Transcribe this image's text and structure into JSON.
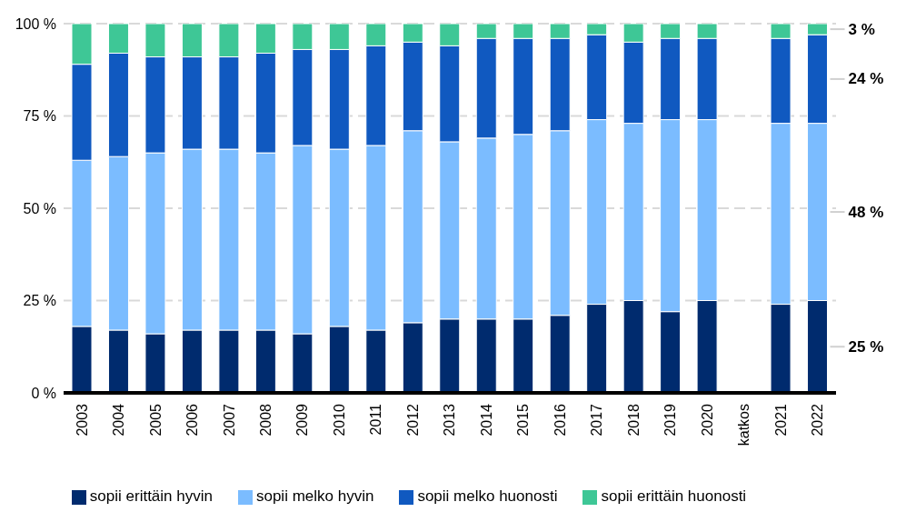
{
  "chart_data": {
    "type": "bar",
    "stacked": true,
    "categories": [
      "2003",
      "2004",
      "2005",
      "2006",
      "2007",
      "2008",
      "2009",
      "2010",
      "2011",
      "2012",
      "2013",
      "2014",
      "2015",
      "2016",
      "2017",
      "2018",
      "2019",
      "2020",
      "katkos",
      "2021",
      "2022"
    ],
    "series": [
      {
        "name": "sopii erittäin hyvin",
        "color": "#002b6e",
        "values": [
          18,
          17,
          16,
          17,
          17,
          17,
          16,
          18,
          17,
          19,
          20,
          20,
          20,
          21,
          24,
          25,
          22,
          25,
          null,
          24,
          25
        ],
        "value_labels": [
          null,
          null,
          null,
          null,
          null,
          null,
          null,
          null,
          null,
          null,
          null,
          null,
          null,
          null,
          null,
          null,
          null,
          null,
          null,
          null,
          "25 %"
        ]
      },
      {
        "name": "sopii melko hyvin",
        "color": "#7bbcff",
        "values": [
          45,
          47,
          49,
          49,
          49,
          48,
          51,
          48,
          50,
          52,
          48,
          49,
          50,
          50,
          50,
          48,
          52,
          49,
          null,
          49,
          48
        ],
        "value_labels": [
          null,
          null,
          null,
          null,
          null,
          null,
          null,
          null,
          null,
          null,
          null,
          null,
          null,
          null,
          null,
          null,
          null,
          null,
          null,
          null,
          "48 %"
        ]
      },
      {
        "name": "sopii melko huonosti",
        "color": "#1059c0",
        "values": [
          26,
          28,
          26,
          25,
          25,
          27,
          26,
          27,
          27,
          24,
          26,
          27,
          26,
          25,
          23,
          22,
          22,
          22,
          null,
          23,
          24
        ],
        "value_labels": [
          null,
          null,
          null,
          null,
          null,
          null,
          null,
          null,
          null,
          null,
          null,
          null,
          null,
          null,
          null,
          null,
          null,
          null,
          null,
          null,
          "24 %"
        ]
      },
      {
        "name": "sopii erittäin huonosti",
        "color": "#3ec796",
        "values": [
          11,
          8,
          9,
          9,
          9,
          8,
          7,
          7,
          6,
          5,
          6,
          4,
          4,
          4,
          3,
          5,
          4,
          4,
          null,
          4,
          3
        ],
        "value_labels": [
          null,
          null,
          null,
          null,
          null,
          null,
          null,
          null,
          null,
          null,
          null,
          null,
          null,
          null,
          null,
          null,
          null,
          null,
          null,
          null,
          "3 %"
        ]
      }
    ],
    "ylim": [
      0,
      100
    ],
    "yticks": [
      {
        "value": 0,
        "label": "0 %"
      },
      {
        "value": 25,
        "label": "25 %"
      },
      {
        "value": 50,
        "label": "50 %"
      },
      {
        "value": 75,
        "label": "75 %"
      },
      {
        "value": 100,
        "label": "100 %"
      }
    ],
    "grid": "y",
    "legend": "bottom"
  }
}
